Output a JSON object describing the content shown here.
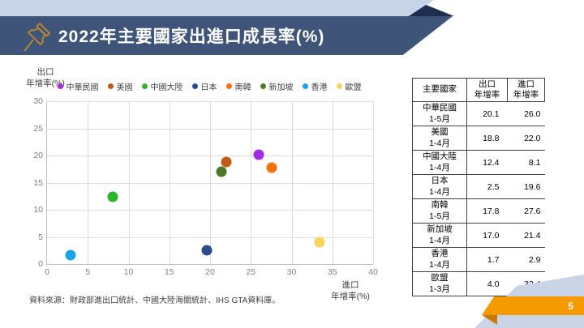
{
  "slide": {
    "title": "2022年主要國家出進口成長率(%)",
    "page_number": "5",
    "source": "資料來源：財政部進出口統計、中國大陸海關統計、IHS GTA資料庫。"
  },
  "colors": {
    "title_bar": "#3E5478",
    "header_band": "#C7D3E7",
    "header_fold": "#1F2E4E",
    "bottom_shape": "#C9D4E6",
    "page_ribbon": "#F59B00",
    "page_ribbon_fold": "#C97A04",
    "grid_line": "#DCDCDC",
    "axis_line": "#BFBFBF",
    "tick_text": "#7F7F7F",
    "pushpin_gold": "#C28A2E"
  },
  "chart_data": {
    "type": "scatter",
    "title": "",
    "xlabel": "進口\n年增率(%)",
    "ylabel": "出口\n年增率(%)",
    "xlim": [
      0,
      40
    ],
    "ylim": [
      0,
      30
    ],
    "x_ticks": [
      0,
      5,
      10,
      15,
      20,
      25,
      30,
      35,
      40
    ],
    "y_ticks": [
      0,
      5,
      10,
      15,
      20,
      25,
      30
    ],
    "grid": true,
    "legend_position": "top",
    "series": [
      {
        "name": "中華民國",
        "color": "#A22BEA",
        "x": 26.0,
        "y": 20.1
      },
      {
        "name": "美國",
        "color": "#BF5B17",
        "x": 22.0,
        "y": 18.8
      },
      {
        "name": "中國大陸",
        "color": "#2DB52D",
        "x": 8.1,
        "y": 12.4
      },
      {
        "name": "日本",
        "color": "#2B4C8C",
        "x": 19.6,
        "y": 2.5
      },
      {
        "name": "南韓",
        "color": "#F87209",
        "x": 27.6,
        "y": 17.8
      },
      {
        "name": "新加坡",
        "color": "#4E7A28",
        "x": 21.4,
        "y": 17.0
      },
      {
        "name": "香港",
        "color": "#1AA3E8",
        "x": 2.9,
        "y": 1.7
      },
      {
        "name": "歐盟",
        "color": "#F9D45C",
        "x": 33.4,
        "y": 4.0
      }
    ]
  },
  "table": {
    "headers": {
      "country": "主要國家",
      "export": "出口\n年增率",
      "import": "進口\n年增率"
    },
    "rows": [
      {
        "country": "中華民國",
        "period": "1-5月",
        "export": "20.1",
        "import": "26.0"
      },
      {
        "country": "美國",
        "period": "1-4月",
        "export": "18.8",
        "import": "22.0"
      },
      {
        "country": "中國大陸",
        "period": "1-4月",
        "export": "12.4",
        "import": "8.1"
      },
      {
        "country": "日本",
        "period": "1-4月",
        "export": "2.5",
        "import": "19.6"
      },
      {
        "country": "南韓",
        "period": "1-5月",
        "export": "17.8",
        "import": "27.6"
      },
      {
        "country": "新加坡",
        "period": "1-4月",
        "export": "17.0",
        "import": "21.4"
      },
      {
        "country": "香港",
        "period": "1-4月",
        "export": "1.7",
        "import": "2.9"
      },
      {
        "country": "歐盟",
        "period": "1-3月",
        "export": "4.0",
        "import": "33.4"
      }
    ]
  }
}
